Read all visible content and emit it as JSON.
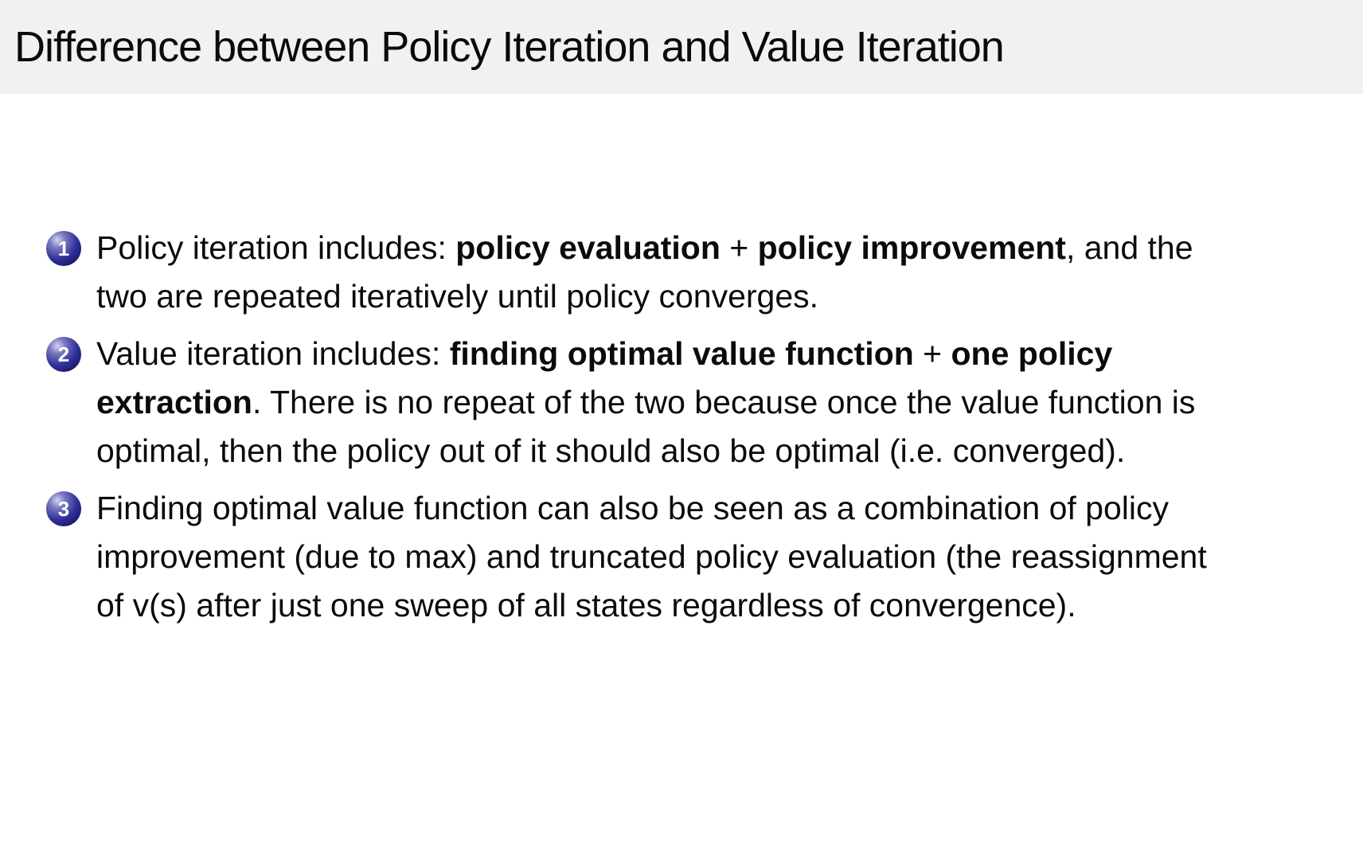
{
  "slide": {
    "title": "Difference between Policy Iteration and Value Iteration",
    "colors": {
      "title_bar_bg": "#f1f1f1",
      "body_bg": "#ffffff",
      "text": "#0b0b0b",
      "ball_fill": "#26268c",
      "ball_number": "#ffffff"
    },
    "bullets": [
      {
        "number": "1",
        "segments": [
          {
            "text": "Policy iteration includes: ",
            "bold": false
          },
          {
            "text": "policy evaluation",
            "bold": true
          },
          {
            "text": " + ",
            "bold": false
          },
          {
            "text": "policy improvement",
            "bold": true
          },
          {
            "text": ", and the two are repeated iteratively until policy converges.",
            "bold": false
          }
        ]
      },
      {
        "number": "2",
        "segments": [
          {
            "text": "Value iteration includes: ",
            "bold": false
          },
          {
            "text": "finding optimal value function",
            "bold": true
          },
          {
            "text": " + ",
            "bold": false
          },
          {
            "text": "one policy extraction",
            "bold": true
          },
          {
            "text": ". There is no repeat of the two because once the value function is optimal, then the policy out of it should also be optimal (i.e. converged).",
            "bold": false
          }
        ]
      },
      {
        "number": "3",
        "segments": [
          {
            "text": "Finding optimal value function can also be seen as a combination of policy improvement (due to max) and truncated policy evaluation (the reassignment of v(s) after just one sweep of all states regardless of convergence).",
            "bold": false
          }
        ]
      }
    ]
  }
}
